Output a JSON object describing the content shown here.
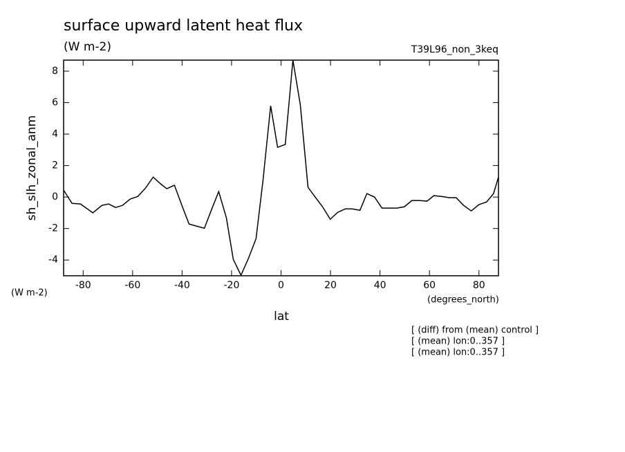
{
  "chart_data": {
    "type": "line",
    "title": "surface upward latent heat flux",
    "subtitle": "(W m-2)",
    "experiment": "T39L96_non_3keq",
    "y_label": "sh_slh_zonal_anm",
    "y_units": "(W m-2)",
    "x_units": "(degrees_north)",
    "x_label": "lat",
    "notes": [
      "[ (diff) from (mean) control ]",
      "[ (mean) lon:0..357 ]",
      "[ (mean) lon:0..357 ]"
    ],
    "x": [
      -87.9,
      -84.5,
      -81.1,
      -76.1,
      -72.4,
      -69.7,
      -66.9,
      -64.1,
      -61.0,
      -57.9,
      -54.8,
      -51.7,
      -48.7,
      -46.2,
      -43.1,
      -40.3,
      -37.2,
      -34.1,
      -31.0,
      -28.3,
      -25.2,
      -22.1,
      -19.3,
      -16.2,
      -13.1,
      -10.1,
      -7.3,
      -4.2,
      -1.4,
      1.7,
      4.8,
      7.8,
      10.9,
      14.0,
      16.8,
      19.9,
      22.9,
      26.0,
      28.8,
      31.9,
      34.7,
      37.8,
      40.8,
      43.9,
      46.7,
      49.8,
      52.9,
      55.9,
      59.0,
      61.8,
      64.9,
      68.0,
      70.8,
      73.8,
      76.9,
      80.0,
      83.1,
      85.9,
      87.9
    ],
    "series": [
      {
        "color": "#000000",
        "values": [
          0.44,
          -0.4,
          -0.44,
          -1.0,
          -0.53,
          -0.44,
          -0.66,
          -0.53,
          -0.13,
          0.04,
          0.57,
          1.27,
          0.84,
          0.53,
          0.75,
          -0.44,
          -1.71,
          -1.85,
          -1.98,
          -0.88,
          0.35,
          -1.32,
          -3.96,
          -4.97,
          -3.87,
          -2.64,
          1.05,
          5.8,
          3.16,
          3.34,
          8.7,
          5.85,
          0.62,
          -0.04,
          -0.62,
          -1.41,
          -0.97,
          -0.75,
          -0.75,
          -0.84,
          0.22,
          0.0,
          -0.7,
          -0.7,
          -0.7,
          -0.62,
          -0.22,
          -0.22,
          -0.26,
          0.09,
          0.04,
          -0.04,
          -0.04,
          -0.53,
          -0.88,
          -0.48,
          -0.31,
          0.22,
          1.27
        ]
      }
    ],
    "xlim": [
      -87.9,
      87.9
    ],
    "ylim": [
      -5.0,
      8.7
    ],
    "xticks": [
      -80,
      -60,
      -40,
      -20,
      0,
      20,
      40,
      60,
      80
    ],
    "yticks": [
      -4,
      -2,
      0,
      2,
      4,
      6,
      8
    ]
  }
}
